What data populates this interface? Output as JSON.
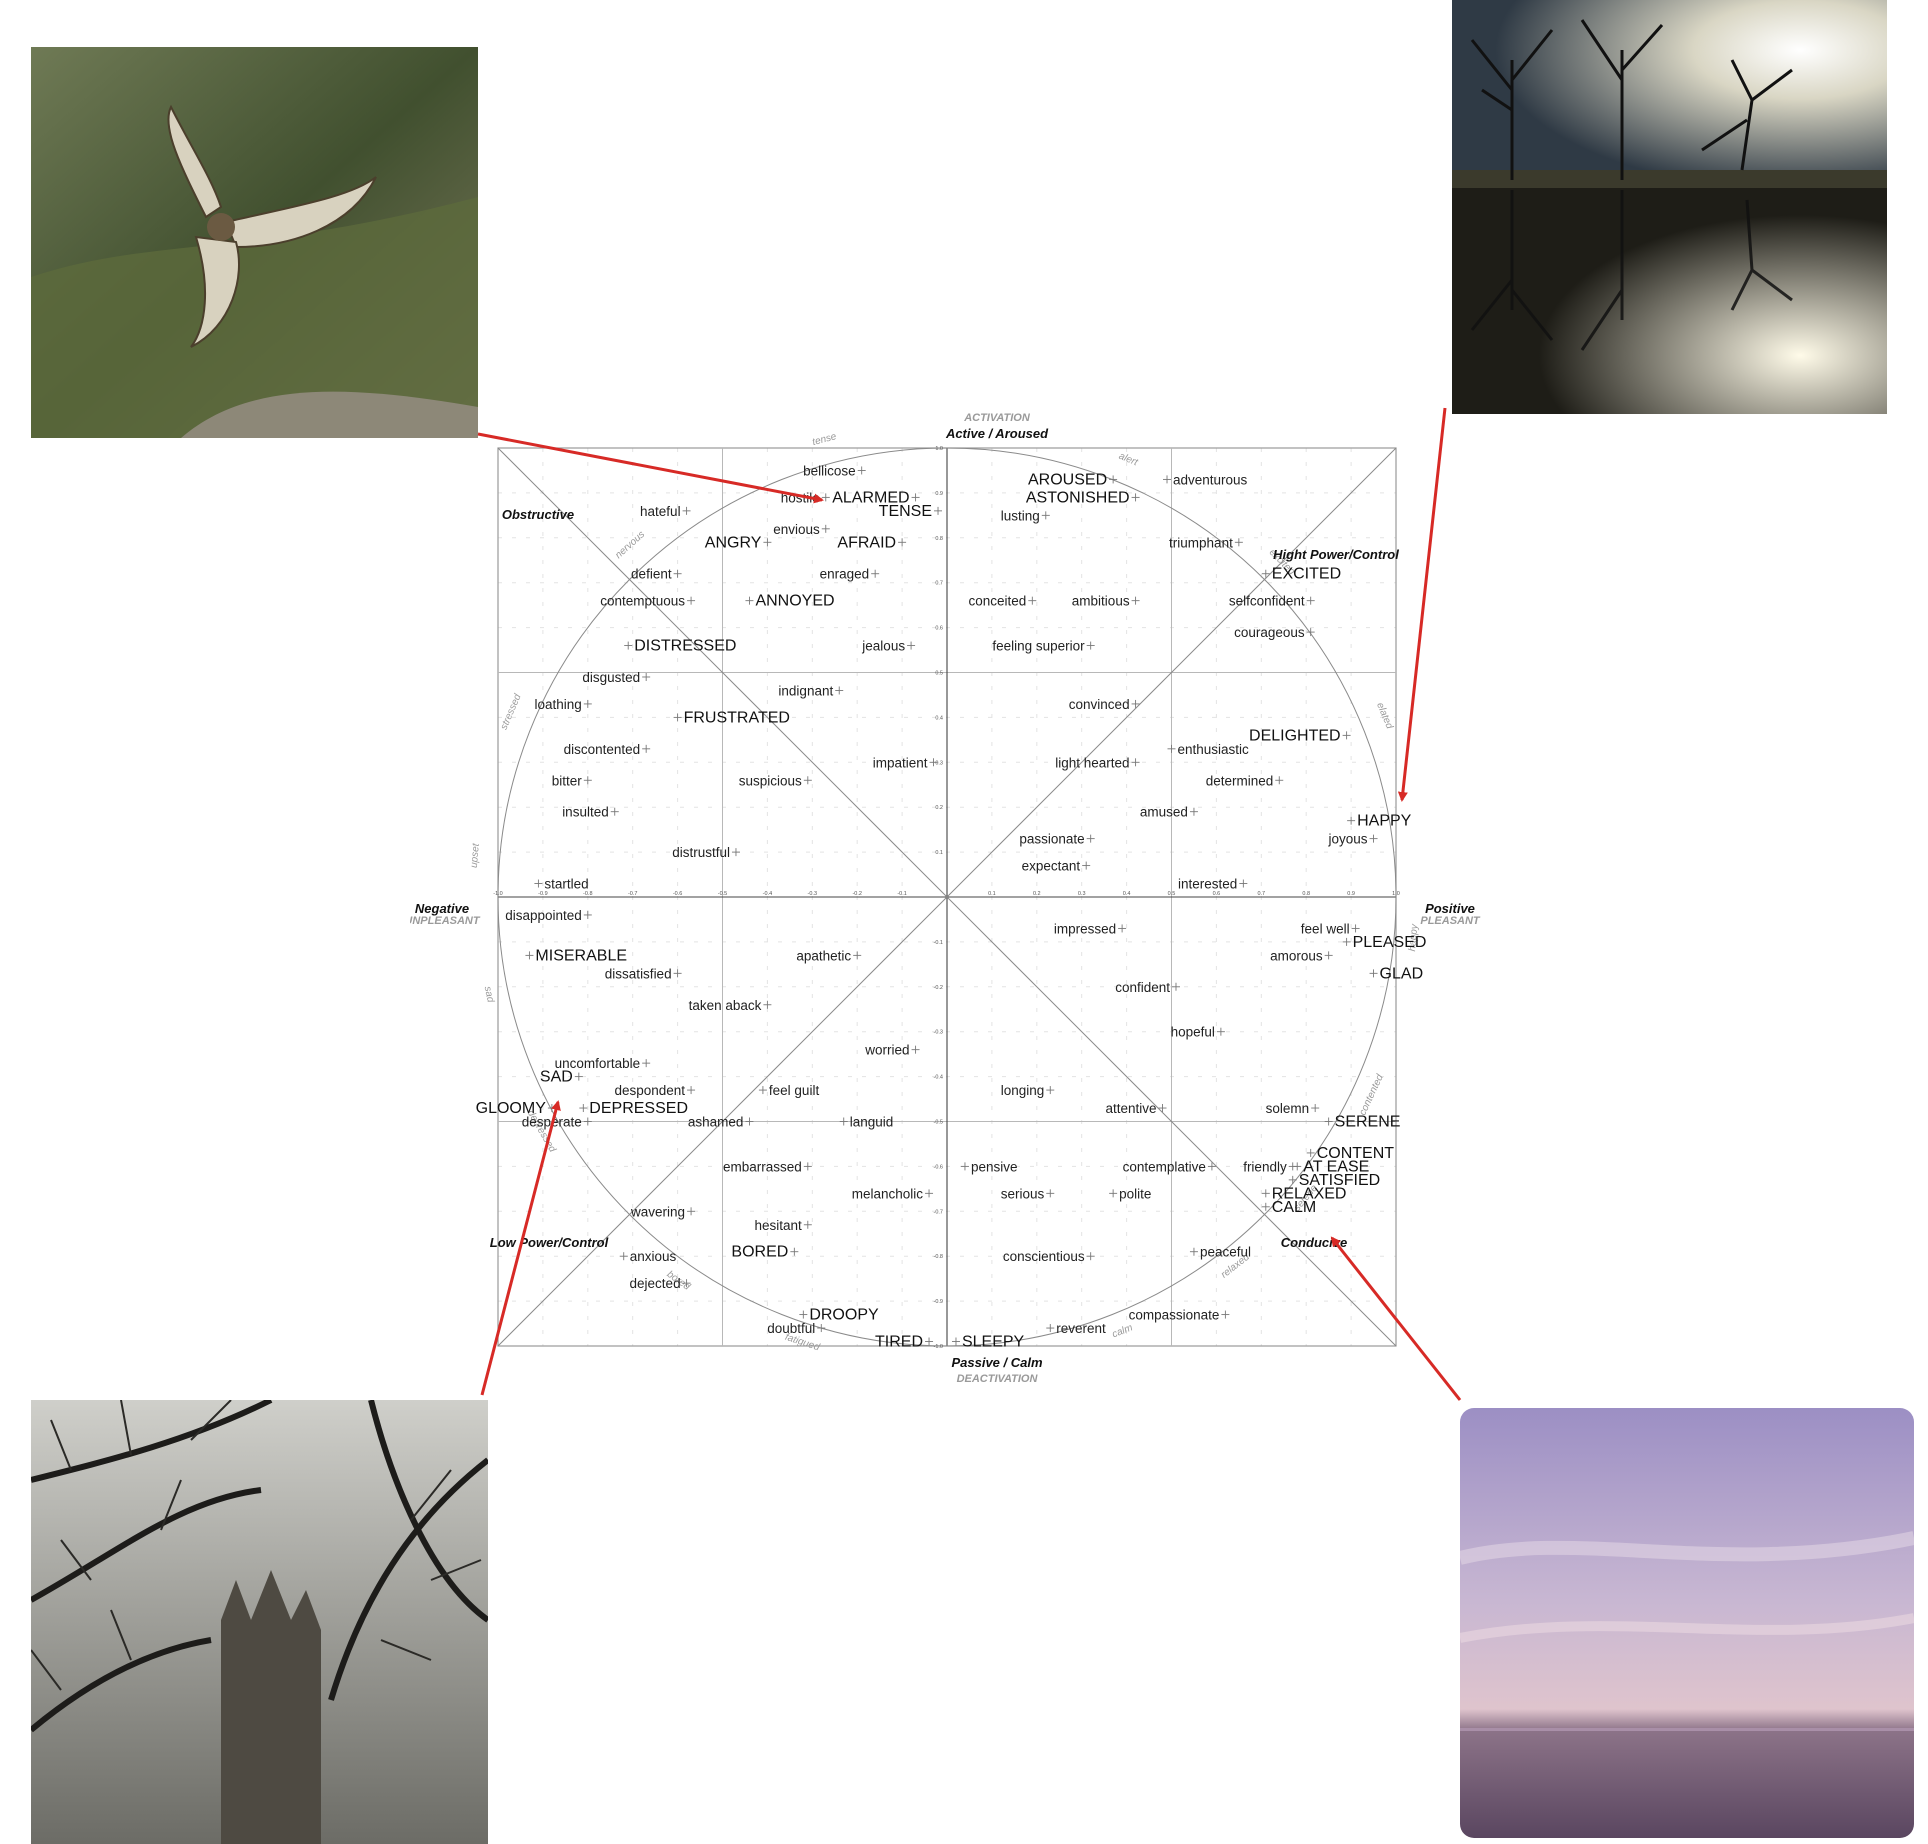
{
  "axes": {
    "top_caps": "ACTIVATION",
    "top": "Active / Aroused",
    "bottom": "Passive / Calm",
    "bottom_caps": "DEACTIVATION",
    "left": "Negative",
    "left_caps": "UNPLEASANT",
    "right": "Positive",
    "right_caps": "PLEASANT"
  },
  "quadrant_labels": {
    "obstructive": "Obstructive",
    "high_power": "Hight Power/Control",
    "low_power": "Low Power/Control",
    "conducive": "Conducive"
  },
  "rim_labels": [
    {
      "text": "alert"
    },
    {
      "text": "excited"
    },
    {
      "text": "elated"
    },
    {
      "text": "happy"
    },
    {
      "text": "contented"
    },
    {
      "text": "serene"
    },
    {
      "text": "relaxed"
    },
    {
      "text": "calm"
    },
    {
      "text": "fatigued"
    },
    {
      "text": "bored"
    },
    {
      "text": "depressed"
    },
    {
      "text": "sad"
    },
    {
      "text": "upset"
    },
    {
      "text": "stressed"
    },
    {
      "text": "nervous"
    },
    {
      "text": "tense"
    }
  ],
  "chart_data": {
    "type": "scatter",
    "description_axes": {
      "x": "valence",
      "y": "arousal"
    },
    "xlim": [
      -1,
      1
    ],
    "ylim": [
      -1,
      1
    ],
    "ticks": [
      "0.1",
      "0.2",
      "0.3",
      "0.4",
      "0.5",
      "0.6",
      "0.7",
      "0.8",
      "0.9",
      "1.0"
    ],
    "points": [
      {
        "text": "bellicose",
        "x": -0.19,
        "y": 0.95,
        "big": false,
        "side": "left"
      },
      {
        "text": "hostile",
        "x": -0.27,
        "y": 0.89,
        "big": false,
        "side": "left"
      },
      {
        "text": "ALARMED",
        "x": -0.07,
        "y": 0.89,
        "big": true,
        "side": "left"
      },
      {
        "text": "TENSE",
        "x": -0.02,
        "y": 0.86,
        "big": true,
        "side": "left"
      },
      {
        "text": "hateful",
        "x": -0.58,
        "y": 0.86,
        "big": false,
        "side": "left"
      },
      {
        "text": "envious",
        "x": -0.27,
        "y": 0.82,
        "big": false,
        "side": "left"
      },
      {
        "text": "ANGRY",
        "x": -0.4,
        "y": 0.79,
        "big": true,
        "side": "left"
      },
      {
        "text": "AFRAID",
        "x": -0.1,
        "y": 0.79,
        "big": true,
        "side": "left"
      },
      {
        "text": "defient",
        "x": -0.6,
        "y": 0.72,
        "big": false,
        "side": "left"
      },
      {
        "text": "enraged",
        "x": -0.16,
        "y": 0.72,
        "big": false,
        "side": "left"
      },
      {
        "text": "contemptuous",
        "x": -0.57,
        "y": 0.66,
        "big": false,
        "side": "left"
      },
      {
        "text": "ANNOYED",
        "x": -0.44,
        "y": 0.66,
        "big": true,
        "side": "right"
      },
      {
        "text": "DISTRESSED",
        "x": -0.71,
        "y": 0.56,
        "big": true,
        "side": "right"
      },
      {
        "text": "jealous",
        "x": -0.08,
        "y": 0.56,
        "big": false,
        "side": "left"
      },
      {
        "text": "disgusted",
        "x": -0.67,
        "y": 0.49,
        "big": false,
        "side": "left"
      },
      {
        "text": "indignant",
        "x": -0.24,
        "y": 0.46,
        "big": false,
        "side": "left"
      },
      {
        "text": "loathing",
        "x": -0.8,
        "y": 0.43,
        "big": false,
        "side": "left"
      },
      {
        "text": "FRUSTRATED",
        "x": -0.6,
        "y": 0.4,
        "big": true,
        "side": "right"
      },
      {
        "text": "discontented",
        "x": -0.67,
        "y": 0.33,
        "big": false,
        "side": "left"
      },
      {
        "text": "impatient",
        "x": -0.03,
        "y": 0.3,
        "big": false,
        "side": "left"
      },
      {
        "text": "bitter",
        "x": -0.8,
        "y": 0.26,
        "big": false,
        "side": "left"
      },
      {
        "text": "suspicious",
        "x": -0.31,
        "y": 0.26,
        "big": false,
        "side": "left"
      },
      {
        "text": "insulted",
        "x": -0.74,
        "y": 0.19,
        "big": false,
        "side": "left"
      },
      {
        "text": "distrustful",
        "x": -0.47,
        "y": 0.1,
        "big": false,
        "side": "left"
      },
      {
        "text": "startled",
        "x": -0.91,
        "y": 0.03,
        "big": false,
        "side": "right"
      },
      {
        "text": "disappointed",
        "x": -0.8,
        "y": -0.04,
        "big": false,
        "side": "left"
      },
      {
        "text": "MISERABLE",
        "x": -0.93,
        "y": -0.13,
        "big": true,
        "side": "right"
      },
      {
        "text": "dissatisfied",
        "x": -0.6,
        "y": -0.17,
        "big": false,
        "side": "left"
      },
      {
        "text": "apathetic",
        "x": -0.2,
        "y": -0.13,
        "big": false,
        "side": "left"
      },
      {
        "text": "taken aback",
        "x": -0.4,
        "y": -0.24,
        "big": false,
        "side": "left"
      },
      {
        "text": "worried",
        "x": -0.07,
        "y": -0.34,
        "big": false,
        "side": "left"
      },
      {
        "text": "uncomfortable",
        "x": -0.67,
        "y": -0.37,
        "big": false,
        "side": "left"
      },
      {
        "text": "SAD",
        "x": -0.82,
        "y": -0.4,
        "big": true,
        "side": "left"
      },
      {
        "text": "despondent",
        "x": -0.57,
        "y": -0.43,
        "big": false,
        "side": "left"
      },
      {
        "text": "feel guilt",
        "x": -0.41,
        "y": -0.43,
        "big": false,
        "side": "right"
      },
      {
        "text": "GLOOMY",
        "x": -0.88,
        "y": -0.47,
        "big": true,
        "side": "left"
      },
      {
        "text": "DEPRESSED",
        "x": -0.81,
        "y": -0.47,
        "big": true,
        "side": "right"
      },
      {
        "text": "desperate",
        "x": -0.8,
        "y": -0.5,
        "big": false,
        "side": "left"
      },
      {
        "text": "ashamed",
        "x": -0.44,
        "y": -0.5,
        "big": false,
        "side": "left"
      },
      {
        "text": "languid",
        "x": -0.23,
        "y": -0.5,
        "big": false,
        "side": "right"
      },
      {
        "text": "embarrassed",
        "x": -0.31,
        "y": -0.6,
        "big": false,
        "side": "left"
      },
      {
        "text": "melancholic",
        "x": -0.04,
        "y": -0.66,
        "big": false,
        "side": "left"
      },
      {
        "text": "wavering",
        "x": -0.57,
        "y": -0.7,
        "big": false,
        "side": "left"
      },
      {
        "text": "hesitant",
        "x": -0.31,
        "y": -0.73,
        "big": false,
        "side": "left"
      },
      {
        "text": "anxious",
        "x": -0.72,
        "y": -0.8,
        "big": false,
        "side": "right"
      },
      {
        "text": "BORED",
        "x": -0.34,
        "y": -0.79,
        "big": true,
        "side": "left"
      },
      {
        "text": "dejected",
        "x": -0.58,
        "y": -0.86,
        "big": false,
        "side": "left"
      },
      {
        "text": "DROOPY",
        "x": -0.32,
        "y": -0.93,
        "big": true,
        "side": "right"
      },
      {
        "text": "doubtful",
        "x": -0.28,
        "y": -0.96,
        "big": false,
        "side": "left"
      },
      {
        "text": "TIRED",
        "x": -0.04,
        "y": -0.99,
        "big": true,
        "side": "left"
      },
      {
        "text": "SLEEPY",
        "x": 0.02,
        "y": -0.99,
        "big": true,
        "side": "right"
      },
      {
        "text": "AROUSED",
        "x": 0.37,
        "y": 0.93,
        "big": true,
        "side": "left"
      },
      {
        "text": "ASTONISHED",
        "x": 0.42,
        "y": 0.89,
        "big": true,
        "side": "left"
      },
      {
        "text": "adventurous",
        "x": 0.49,
        "y": 0.93,
        "big": false,
        "side": "right"
      },
      {
        "text": "lusting",
        "x": 0.22,
        "y": 0.85,
        "big": false,
        "side": "left"
      },
      {
        "text": "triumphant",
        "x": 0.65,
        "y": 0.79,
        "big": false,
        "side": "left"
      },
      {
        "text": "EXCITED",
        "x": 0.71,
        "y": 0.72,
        "big": true,
        "side": "right"
      },
      {
        "text": "conceited",
        "x": 0.19,
        "y": 0.66,
        "big": false,
        "side": "left"
      },
      {
        "text": "ambitious",
        "x": 0.42,
        "y": 0.66,
        "big": false,
        "side": "left"
      },
      {
        "text": "selfconfident",
        "x": 0.81,
        "y": 0.66,
        "big": false,
        "side": "left"
      },
      {
        "text": "courageous",
        "x": 0.81,
        "y": 0.59,
        "big": false,
        "side": "left"
      },
      {
        "text": "feeling superior",
        "x": 0.32,
        "y": 0.56,
        "big": false,
        "side": "left"
      },
      {
        "text": "convinced",
        "x": 0.42,
        "y": 0.43,
        "big": false,
        "side": "left"
      },
      {
        "text": "DELIGHTED",
        "x": 0.89,
        "y": 0.36,
        "big": true,
        "side": "left"
      },
      {
        "text": "enthusiastic",
        "x": 0.5,
        "y": 0.33,
        "big": false,
        "side": "right"
      },
      {
        "text": "light hearted",
        "x": 0.42,
        "y": 0.3,
        "big": false,
        "side": "left"
      },
      {
        "text": "determined",
        "x": 0.74,
        "y": 0.26,
        "big": false,
        "side": "left"
      },
      {
        "text": "amused",
        "x": 0.55,
        "y": 0.19,
        "big": false,
        "side": "left"
      },
      {
        "text": "HAPPY",
        "x": 0.9,
        "y": 0.17,
        "big": true,
        "side": "right"
      },
      {
        "text": "joyous",
        "x": 0.95,
        "y": 0.13,
        "big": false,
        "side": "left"
      },
      {
        "text": "passionate",
        "x": 0.32,
        "y": 0.13,
        "big": false,
        "side": "left"
      },
      {
        "text": "expectant",
        "x": 0.31,
        "y": 0.07,
        "big": false,
        "side": "left"
      },
      {
        "text": "interested",
        "x": 0.66,
        "y": 0.03,
        "big": false,
        "side": "left"
      },
      {
        "text": "impressed",
        "x": 0.39,
        "y": -0.07,
        "big": false,
        "side": "left"
      },
      {
        "text": "feel well",
        "x": 0.91,
        "y": -0.07,
        "big": false,
        "side": "left"
      },
      {
        "text": "PLEASED",
        "x": 0.89,
        "y": -0.1,
        "big": true,
        "side": "right"
      },
      {
        "text": "amorous",
        "x": 0.85,
        "y": -0.13,
        "big": false,
        "side": "left"
      },
      {
        "text": "GLAD",
        "x": 0.95,
        "y": -0.17,
        "big": true,
        "side": "right"
      },
      {
        "text": "confident",
        "x": 0.51,
        "y": -0.2,
        "big": false,
        "side": "left"
      },
      {
        "text": "hopeful",
        "x": 0.61,
        "y": -0.3,
        "big": false,
        "side": "left"
      },
      {
        "text": "longing",
        "x": 0.23,
        "y": -0.43,
        "big": false,
        "side": "left"
      },
      {
        "text": "attentive",
        "x": 0.48,
        "y": -0.47,
        "big": false,
        "side": "left"
      },
      {
        "text": "solemn",
        "x": 0.82,
        "y": -0.47,
        "big": false,
        "side": "left"
      },
      {
        "text": "SERENE",
        "x": 0.85,
        "y": -0.5,
        "big": true,
        "side": "right"
      },
      {
        "text": "CONTENT",
        "x": 0.81,
        "y": -0.57,
        "big": true,
        "side": "right"
      },
      {
        "text": "pensive",
        "x": 0.04,
        "y": -0.6,
        "big": false,
        "side": "right"
      },
      {
        "text": "contemplative",
        "x": 0.59,
        "y": -0.6,
        "big": false,
        "side": "left"
      },
      {
        "text": "friendly",
        "x": 0.77,
        "y": -0.6,
        "big": false,
        "side": "left"
      },
      {
        "text": "AT EASE",
        "x": 0.78,
        "y": -0.6,
        "big": true,
        "side": "right"
      },
      {
        "text": "SATISFIED",
        "x": 0.77,
        "y": -0.63,
        "big": true,
        "side": "right"
      },
      {
        "text": "serious",
        "x": 0.23,
        "y": -0.66,
        "big": false,
        "side": "left"
      },
      {
        "text": "polite",
        "x": 0.37,
        "y": -0.66,
        "big": false,
        "side": "right"
      },
      {
        "text": "RELAXED",
        "x": 0.71,
        "y": -0.66,
        "big": true,
        "side": "right"
      },
      {
        "text": "CALM",
        "x": 0.71,
        "y": -0.69,
        "big": true,
        "side": "right"
      },
      {
        "text": "conscientious",
        "x": 0.32,
        "y": -0.8,
        "big": false,
        "side": "left"
      },
      {
        "text": "peaceful",
        "x": 0.55,
        "y": -0.79,
        "big": false,
        "side": "right"
      },
      {
        "text": "compassionate",
        "x": 0.62,
        "y": -0.93,
        "big": false,
        "side": "left"
      },
      {
        "text": "reverent",
        "x": 0.23,
        "y": -0.96,
        "big": false,
        "side": "right"
      }
    ]
  },
  "photos": [
    {
      "name": "eagle-photo",
      "colors": [
        "#5e6c44",
        "#3f4f33",
        "#8a8a68"
      ]
    },
    {
      "name": "joyful-silhouette-photo",
      "colors": [
        "#f4f2e6",
        "#2b2a22",
        "#6e6a52"
      ]
    },
    {
      "name": "gloomy-tree-photo",
      "colors": [
        "#bcbcb6",
        "#2a2a28",
        "#5a5a56"
      ]
    },
    {
      "name": "calm-sea-photo",
      "colors": [
        "#b3a5c9",
        "#d8c2cf",
        "#6f5a78"
      ]
    }
  ],
  "arrow_color": "#d72a26"
}
